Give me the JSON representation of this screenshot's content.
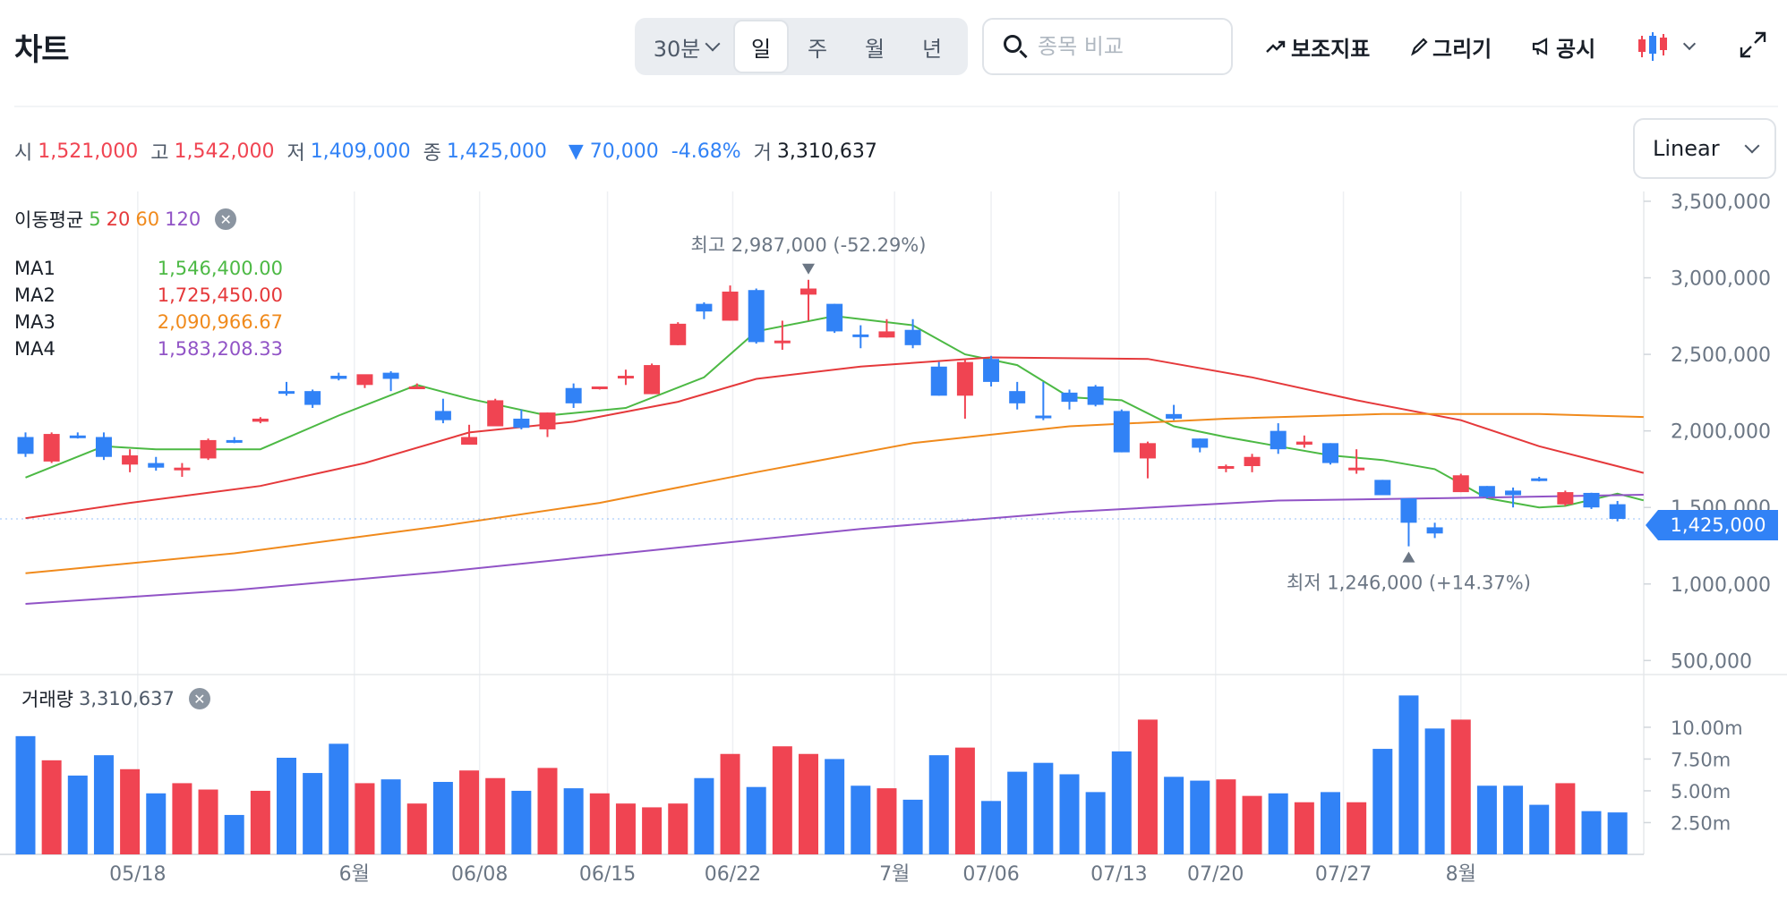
{
  "header": {
    "title": "차트",
    "periods": {
      "interval": "30분",
      "day": "일",
      "week": "주",
      "month": "월",
      "year": "년"
    },
    "search_placeholder": "종목 비교",
    "indicator_label": "보조지표",
    "draw_label": "그리기",
    "disclosure_label": "공시"
  },
  "ohlc": {
    "open_label": "시",
    "open": "1,521,000",
    "high_label": "고",
    "high": "1,542,000",
    "low_label": "저",
    "low": "1,409,000",
    "close_label": "종",
    "close": "1,425,000",
    "change": "▼ 70,000",
    "change_pct": "-4.68%",
    "volume_label": "거",
    "volume": "3,310,637"
  },
  "scale_select": "Linear",
  "ma_legend": {
    "title": "이동평균",
    "periods": [
      "5",
      "20",
      "60",
      "120"
    ],
    "rows": [
      {
        "name": "MA1",
        "value": "1,546,400.00"
      },
      {
        "name": "MA2",
        "value": "1,725,450.00"
      },
      {
        "name": "MA3",
        "value": "2,090,966.67"
      },
      {
        "name": "MA4",
        "value": "1,583,208.33"
      }
    ]
  },
  "volume_legend": {
    "label": "거래량",
    "value": "3,310,637"
  },
  "current_price_tag": "1,425,000",
  "colors": {
    "up": "#f04452",
    "down": "#3182f6",
    "ma5": "#4cb944",
    "ma20": "#e5393b",
    "ma60": "#f08a1c",
    "ma120": "#9153c6",
    "grid": "#eef0f3"
  },
  "chart_data": {
    "type": "candlestick",
    "x_tick_labels": [
      "05/18",
      "6월",
      "06/08",
      "06/15",
      "06/22",
      "7월",
      "07/06",
      "07/13",
      "07/20",
      "07/27",
      "8월"
    ],
    "x_tick_index": [
      4.3,
      12.6,
      17.4,
      22.3,
      27.1,
      33.3,
      37.0,
      41.9,
      45.6,
      50.5,
      55.0
    ],
    "y_ticks": [
      "3,500,000",
      "3,000,000",
      "2,500,000",
      "2,000,000",
      "1,500,000",
      "1,000,000",
      "500,000"
    ],
    "ylim": [
      420000,
      3570000
    ],
    "candles": [
      {
        "o": 1960000,
        "h": 1990000,
        "l": 1830000,
        "c": 1850000,
        "v": 9.3
      },
      {
        "o": 1800000,
        "h": 1990000,
        "l": 1790000,
        "c": 1980000,
        "v": 7.4
      },
      {
        "o": 1970000,
        "h": 1990000,
        "l": 1950000,
        "c": 1960000,
        "v": 6.2
      },
      {
        "o": 1960000,
        "h": 1990000,
        "l": 1810000,
        "c": 1830000,
        "v": 7.8
      },
      {
        "o": 1780000,
        "h": 1880000,
        "l": 1730000,
        "c": 1840000,
        "v": 6.7
      },
      {
        "o": 1790000,
        "h": 1830000,
        "l": 1740000,
        "c": 1760000,
        "v": 4.8
      },
      {
        "o": 1750000,
        "h": 1790000,
        "l": 1700000,
        "c": 1760000,
        "v": 5.6
      },
      {
        "o": 1820000,
        "h": 1950000,
        "l": 1810000,
        "c": 1940000,
        "v": 5.1
      },
      {
        "o": 1940000,
        "h": 1960000,
        "l": 1920000,
        "c": 1930000,
        "v": 3.1
      },
      {
        "o": 2060000,
        "h": 2090000,
        "l": 2050000,
        "c": 2080000,
        "v": 5.0
      },
      {
        "o": 2260000,
        "h": 2320000,
        "l": 2230000,
        "c": 2250000,
        "v": 7.6
      },
      {
        "o": 2260000,
        "h": 2270000,
        "l": 2150000,
        "c": 2170000,
        "v": 6.4
      },
      {
        "o": 2360000,
        "h": 2380000,
        "l": 2330000,
        "c": 2340000,
        "v": 8.7
      },
      {
        "o": 2300000,
        "h": 2350000,
        "l": 2280000,
        "c": 2370000,
        "v": 5.6
      },
      {
        "o": 2380000,
        "h": 2390000,
        "l": 2260000,
        "c": 2340000,
        "v": 5.9
      },
      {
        "o": 2290000,
        "h": 2310000,
        "l": 2280000,
        "c": 2290000,
        "v": 4.0
      },
      {
        "o": 2130000,
        "h": 2210000,
        "l": 2050000,
        "c": 2070000,
        "v": 5.7
      },
      {
        "o": 1910000,
        "h": 2040000,
        "l": 1910000,
        "c": 1960000,
        "v": 6.6
      },
      {
        "o": 2030000,
        "h": 2210000,
        "l": 2030000,
        "c": 2200000,
        "v": 6.0
      },
      {
        "o": 2080000,
        "h": 2140000,
        "l": 2010000,
        "c": 2020000,
        "v": 5.0
      },
      {
        "o": 2010000,
        "h": 2120000,
        "l": 1960000,
        "c": 2120000,
        "v": 6.8
      },
      {
        "o": 2280000,
        "h": 2310000,
        "l": 2150000,
        "c": 2180000,
        "v": 5.2
      },
      {
        "o": 2280000,
        "h": 2290000,
        "l": 2270000,
        "c": 2290000,
        "v": 4.8
      },
      {
        "o": 2350000,
        "h": 2400000,
        "l": 2300000,
        "c": 2360000,
        "v": 4.0
      },
      {
        "o": 2240000,
        "h": 2440000,
        "l": 2240000,
        "c": 2430000,
        "v": 3.7
      },
      {
        "o": 2560000,
        "h": 2710000,
        "l": 2560000,
        "c": 2700000,
        "v": 4.0
      },
      {
        "o": 2830000,
        "h": 2840000,
        "l": 2730000,
        "c": 2780000,
        "v": 6.0
      },
      {
        "o": 2720000,
        "h": 2950000,
        "l": 2720000,
        "c": 2910000,
        "v": 7.9
      },
      {
        "o": 2920000,
        "h": 2930000,
        "l": 2570000,
        "c": 2580000,
        "v": 5.3
      },
      {
        "o": 2590000,
        "h": 2720000,
        "l": 2530000,
        "c": 2590000,
        "v": 8.5
      },
      {
        "o": 2890000,
        "h": 2987000,
        "l": 2720000,
        "c": 2930000,
        "v": 7.9
      },
      {
        "o": 2830000,
        "h": 2830000,
        "l": 2640000,
        "c": 2650000,
        "v": 7.5
      },
      {
        "o": 2630000,
        "h": 2690000,
        "l": 2540000,
        "c": 2620000,
        "v": 5.4
      },
      {
        "o": 2610000,
        "h": 2730000,
        "l": 2610000,
        "c": 2650000,
        "v": 5.2
      },
      {
        "o": 2660000,
        "h": 2730000,
        "l": 2540000,
        "c": 2560000,
        "v": 4.3
      },
      {
        "o": 2420000,
        "h": 2450000,
        "l": 2230000,
        "c": 2230000,
        "v": 7.8
      },
      {
        "o": 2230000,
        "h": 2470000,
        "l": 2080000,
        "c": 2450000,
        "v": 8.4
      },
      {
        "o": 2470000,
        "h": 2490000,
        "l": 2290000,
        "c": 2320000,
        "v": 4.2
      },
      {
        "o": 2260000,
        "h": 2320000,
        "l": 2140000,
        "c": 2180000,
        "v": 6.5
      },
      {
        "o": 2100000,
        "h": 2320000,
        "l": 2070000,
        "c": 2090000,
        "v": 7.2
      },
      {
        "o": 2250000,
        "h": 2270000,
        "l": 2140000,
        "c": 2190000,
        "v": 6.3
      },
      {
        "o": 2290000,
        "h": 2300000,
        "l": 2160000,
        "c": 2170000,
        "v": 4.9
      },
      {
        "o": 2130000,
        "h": 2140000,
        "l": 1860000,
        "c": 1860000,
        "v": 8.1
      },
      {
        "o": 1820000,
        "h": 1930000,
        "l": 1690000,
        "c": 1920000,
        "v": 10.6
      },
      {
        "o": 2110000,
        "h": 2170000,
        "l": 2070000,
        "c": 2080000,
        "v": 6.1
      },
      {
        "o": 1950000,
        "h": 1950000,
        "l": 1860000,
        "c": 1890000,
        "v": 5.8
      },
      {
        "o": 1760000,
        "h": 1780000,
        "l": 1730000,
        "c": 1770000,
        "v": 5.9
      },
      {
        "o": 1770000,
        "h": 1850000,
        "l": 1730000,
        "c": 1830000,
        "v": 4.6
      },
      {
        "o": 2000000,
        "h": 2050000,
        "l": 1850000,
        "c": 1880000,
        "v": 4.8
      },
      {
        "o": 1910000,
        "h": 1970000,
        "l": 1890000,
        "c": 1930000,
        "v": 4.1
      },
      {
        "o": 1920000,
        "h": 1920000,
        "l": 1780000,
        "c": 1790000,
        "v": 4.9
      },
      {
        "o": 1750000,
        "h": 1880000,
        "l": 1720000,
        "c": 1760000,
        "v": 4.1
      },
      {
        "o": 1680000,
        "h": 1680000,
        "l": 1580000,
        "c": 1580000,
        "v": 8.3
      },
      {
        "o": 1560000,
        "h": 1560000,
        "l": 1246000,
        "c": 1400000,
        "v": 12.5
      },
      {
        "o": 1370000,
        "h": 1400000,
        "l": 1300000,
        "c": 1330000,
        "v": 9.9
      },
      {
        "o": 1600000,
        "h": 1720000,
        "l": 1600000,
        "c": 1710000,
        "v": 10.6
      },
      {
        "o": 1640000,
        "h": 1640000,
        "l": 1560000,
        "c": 1570000,
        "v": 5.4
      },
      {
        "o": 1610000,
        "h": 1630000,
        "l": 1500000,
        "c": 1580000,
        "v": 5.4
      },
      {
        "o": 1690000,
        "h": 1700000,
        "l": 1670000,
        "c": 1680000,
        "v": 3.9
      },
      {
        "o": 1520000,
        "h": 1610000,
        "l": 1510000,
        "c": 1600000,
        "v": 5.6
      },
      {
        "o": 1595000,
        "h": 1596000,
        "l": 1490000,
        "c": 1500000,
        "v": 3.4
      },
      {
        "o": 1521000,
        "h": 1542000,
        "l": 1409000,
        "c": 1425000,
        "v": 3.3
      }
    ],
    "ma": [
      {
        "name": "5",
        "color": "#4cb944",
        "points": [
          [
            0,
            1695000
          ],
          [
            3,
            1900000
          ],
          [
            5,
            1880000
          ],
          [
            9,
            1880000
          ],
          [
            12,
            2100000
          ],
          [
            15,
            2300000
          ],
          [
            17,
            2210000
          ],
          [
            20,
            2100000
          ],
          [
            23,
            2150000
          ],
          [
            26,
            2350000
          ],
          [
            28,
            2650000
          ],
          [
            31,
            2750000
          ],
          [
            34,
            2690000
          ],
          [
            36,
            2500000
          ],
          [
            38,
            2430000
          ],
          [
            40,
            2220000
          ],
          [
            42,
            2200000
          ],
          [
            44,
            2030000
          ],
          [
            46,
            1960000
          ],
          [
            48,
            1900000
          ],
          [
            50,
            1840000
          ],
          [
            52,
            1810000
          ],
          [
            54,
            1750000
          ],
          [
            56,
            1560000
          ],
          [
            58,
            1500000
          ],
          [
            59,
            1510000
          ],
          [
            61,
            1590000
          ],
          [
            62,
            1546400
          ]
        ]
      },
      {
        "name": "20",
        "color": "#e5393b",
        "points": [
          [
            0,
            1430000
          ],
          [
            4,
            1530000
          ],
          [
            9,
            1640000
          ],
          [
            13,
            1790000
          ],
          [
            17,
            1990000
          ],
          [
            21,
            2060000
          ],
          [
            25,
            2190000
          ],
          [
            28,
            2340000
          ],
          [
            32,
            2420000
          ],
          [
            37,
            2480000
          ],
          [
            43,
            2470000
          ],
          [
            47,
            2350000
          ],
          [
            51,
            2200000
          ],
          [
            55,
            2070000
          ],
          [
            58,
            1900000
          ],
          [
            62,
            1725450
          ]
        ]
      },
      {
        "name": "60",
        "color": "#f08a1c",
        "points": [
          [
            0,
            1070000
          ],
          [
            8,
            1200000
          ],
          [
            16,
            1380000
          ],
          [
            22,
            1530000
          ],
          [
            28,
            1730000
          ],
          [
            34,
            1920000
          ],
          [
            40,
            2030000
          ],
          [
            46,
            2080000
          ],
          [
            52,
            2110000
          ],
          [
            58,
            2110000
          ],
          [
            62,
            2090967
          ]
        ]
      },
      {
        "name": "120",
        "color": "#9153c6",
        "points": [
          [
            0,
            870000
          ],
          [
            8,
            960000
          ],
          [
            16,
            1080000
          ],
          [
            24,
            1220000
          ],
          [
            32,
            1360000
          ],
          [
            40,
            1470000
          ],
          [
            48,
            1545000
          ],
          [
            56,
            1565000
          ],
          [
            62,
            1583208
          ]
        ]
      }
    ],
    "annotations": [
      {
        "label": "최고",
        "value_text": "2,987,000 (-52.29%)",
        "index": 30,
        "price": 2987000,
        "side": "above"
      },
      {
        "label": "최저",
        "value_text": "1,246,000 (+14.37%)",
        "index": 53,
        "price": 1246000,
        "side": "below"
      }
    ],
    "volume_ticks": [
      "10.00m",
      "7.50m",
      "5.00m",
      "2.50m"
    ],
    "volume_tick_values": [
      10,
      7.5,
      5,
      2.5
    ],
    "volume_max": 13.3
  }
}
